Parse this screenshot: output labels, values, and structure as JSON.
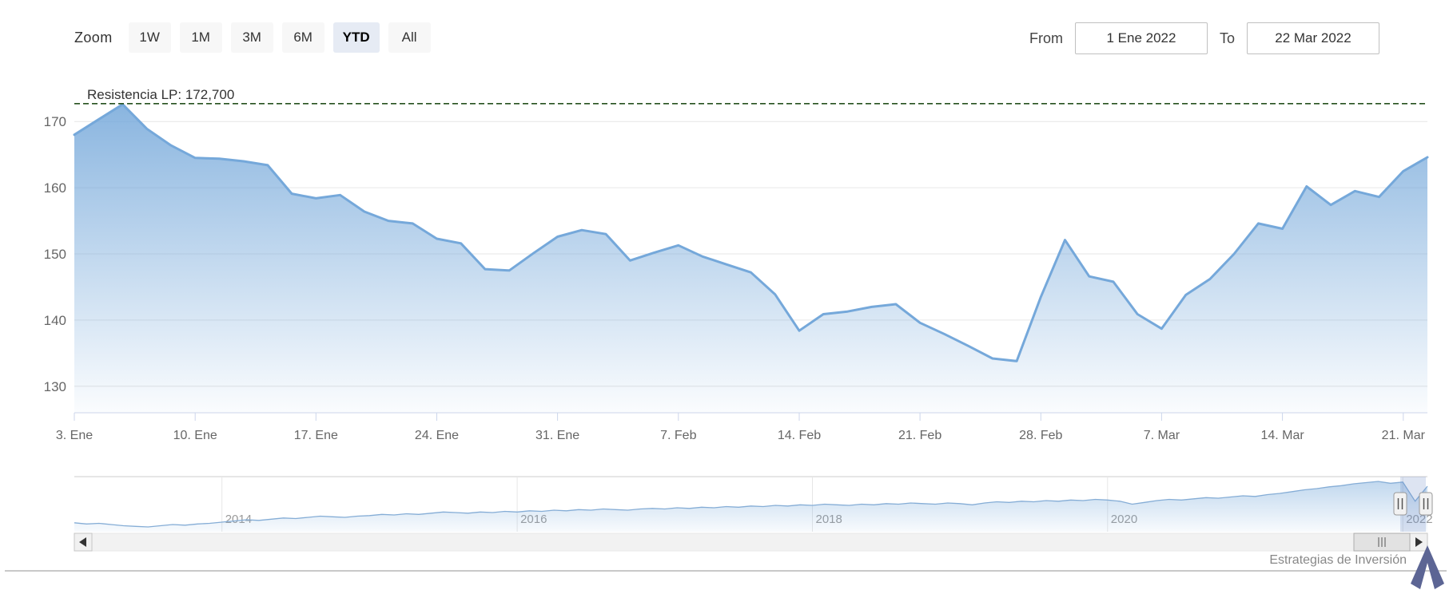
{
  "toolbar": {
    "zoom_label": "Zoom",
    "buttons": [
      {
        "label": "1W",
        "selected": false
      },
      {
        "label": "1M",
        "selected": false
      },
      {
        "label": "3M",
        "selected": false
      },
      {
        "label": "6M",
        "selected": false
      },
      {
        "label": "YTD",
        "selected": true
      },
      {
        "label": "All",
        "selected": false
      }
    ],
    "from_label": "From",
    "from_value": "1 Ene 2022",
    "to_label": "To",
    "to_value": "22 Mar 2022"
  },
  "chart_data": {
    "type": "area",
    "title": "",
    "xlabel": "",
    "ylabel": "",
    "ylim": [
      126,
      176.3
    ],
    "y_ticks": [
      130,
      140,
      150,
      160,
      170
    ],
    "grid": true,
    "legend": false,
    "line_color": "#75a8da",
    "annotation": {
      "label": "Resistencia LP: 172,700",
      "value": 172.7,
      "color": "#26511f"
    },
    "x_ticks": [
      {
        "index": 0,
        "label": "3. Ene"
      },
      {
        "index": 5,
        "label": "10. Ene"
      },
      {
        "index": 10,
        "label": "17. Ene"
      },
      {
        "index": 15,
        "label": "24. Ene"
      },
      {
        "index": 20,
        "label": "31. Ene"
      },
      {
        "index": 25,
        "label": "7. Feb"
      },
      {
        "index": 30,
        "label": "14. Feb"
      },
      {
        "index": 35,
        "label": "21. Feb"
      },
      {
        "index": 40,
        "label": "28. Feb"
      },
      {
        "index": 45,
        "label": "7. Mar"
      },
      {
        "index": 50,
        "label": "14. Mar"
      },
      {
        "index": 55,
        "label": "21. Mar"
      }
    ],
    "series": [
      {
        "name": "Precio",
        "dates": [
          "3 Ene",
          "4 Ene",
          "5 Ene",
          "6 Ene",
          "7 Ene",
          "10 Ene",
          "11 Ene",
          "12 Ene",
          "13 Ene",
          "14 Ene",
          "17 Ene",
          "18 Ene",
          "19 Ene",
          "20 Ene",
          "21 Ene",
          "24 Ene",
          "25 Ene",
          "26 Ene",
          "27 Ene",
          "28 Ene",
          "31 Ene",
          "1 Feb",
          "2 Feb",
          "3 Feb",
          "4 Feb",
          "7 Feb",
          "8 Feb",
          "9 Feb",
          "10 Feb",
          "11 Feb",
          "14 Feb",
          "15 Feb",
          "16 Feb",
          "17 Feb",
          "18 Feb",
          "21 Feb",
          "22 Feb",
          "23 Feb",
          "24 Feb",
          "25 Feb",
          "28 Feb",
          "1 Mar",
          "2 Mar",
          "3 Mar",
          "4 Mar",
          "7 Mar",
          "8 Mar",
          "9 Mar",
          "10 Mar",
          "11 Mar",
          "14 Mar",
          "15 Mar",
          "16 Mar",
          "17 Mar",
          "18 Mar",
          "21 Mar",
          "22 Mar"
        ],
        "values": [
          168.0,
          170.3,
          172.6,
          168.9,
          166.4,
          164.5,
          164.4,
          164.0,
          163.4,
          159.1,
          158.4,
          158.9,
          156.4,
          155.0,
          154.6,
          152.3,
          151.6,
          147.7,
          147.5,
          150.1,
          152.6,
          153.6,
          153.0,
          149.0,
          150.2,
          151.3,
          149.6,
          148.4,
          147.2,
          143.9,
          138.4,
          140.9,
          141.3,
          142.0,
          142.4,
          139.6,
          137.9,
          136.1,
          134.2,
          133.8,
          143.5,
          152.1,
          146.6,
          145.8,
          140.9,
          138.7,
          143.8,
          146.2,
          150.0,
          154.6,
          153.8,
          160.2,
          157.4,
          159.5,
          158.6,
          162.5,
          164.6
        ]
      }
    ],
    "navigator": {
      "ylim": [
        88,
        180
      ],
      "year_ticks": [
        {
          "index": 12,
          "label": "2014"
        },
        {
          "index": 36,
          "label": "2016"
        },
        {
          "index": 60,
          "label": "2018"
        },
        {
          "index": 84,
          "label": "2020"
        },
        {
          "index": 108,
          "label": "2022"
        }
      ],
      "values": [
        103,
        101,
        102,
        100,
        98,
        97,
        96,
        98,
        100,
        99,
        101,
        102,
        104,
        106,
        108,
        107,
        109,
        111,
        110,
        112,
        114,
        113,
        112,
        114,
        115,
        117,
        116,
        118,
        117,
        119,
        121,
        120,
        119,
        121,
        120,
        122,
        121,
        123,
        122,
        124,
        123,
        125,
        124,
        126,
        125,
        124,
        126,
        127,
        126,
        128,
        127,
        129,
        128,
        130,
        129,
        131,
        130,
        132,
        131,
        133,
        132,
        134,
        133,
        132,
        134,
        133,
        135,
        134,
        136,
        135,
        134,
        136,
        135,
        133,
        136,
        138,
        137,
        139,
        138,
        140,
        139,
        141,
        140,
        142,
        141,
        139,
        134,
        137,
        140,
        142,
        141,
        143,
        145,
        144,
        146,
        148,
        147,
        150,
        152,
        155,
        158,
        160,
        163,
        165,
        168,
        170,
        172,
        169,
        171,
        139,
        164
      ]
    }
  },
  "footer": {
    "credit": "Estrategias de Inversión"
  }
}
